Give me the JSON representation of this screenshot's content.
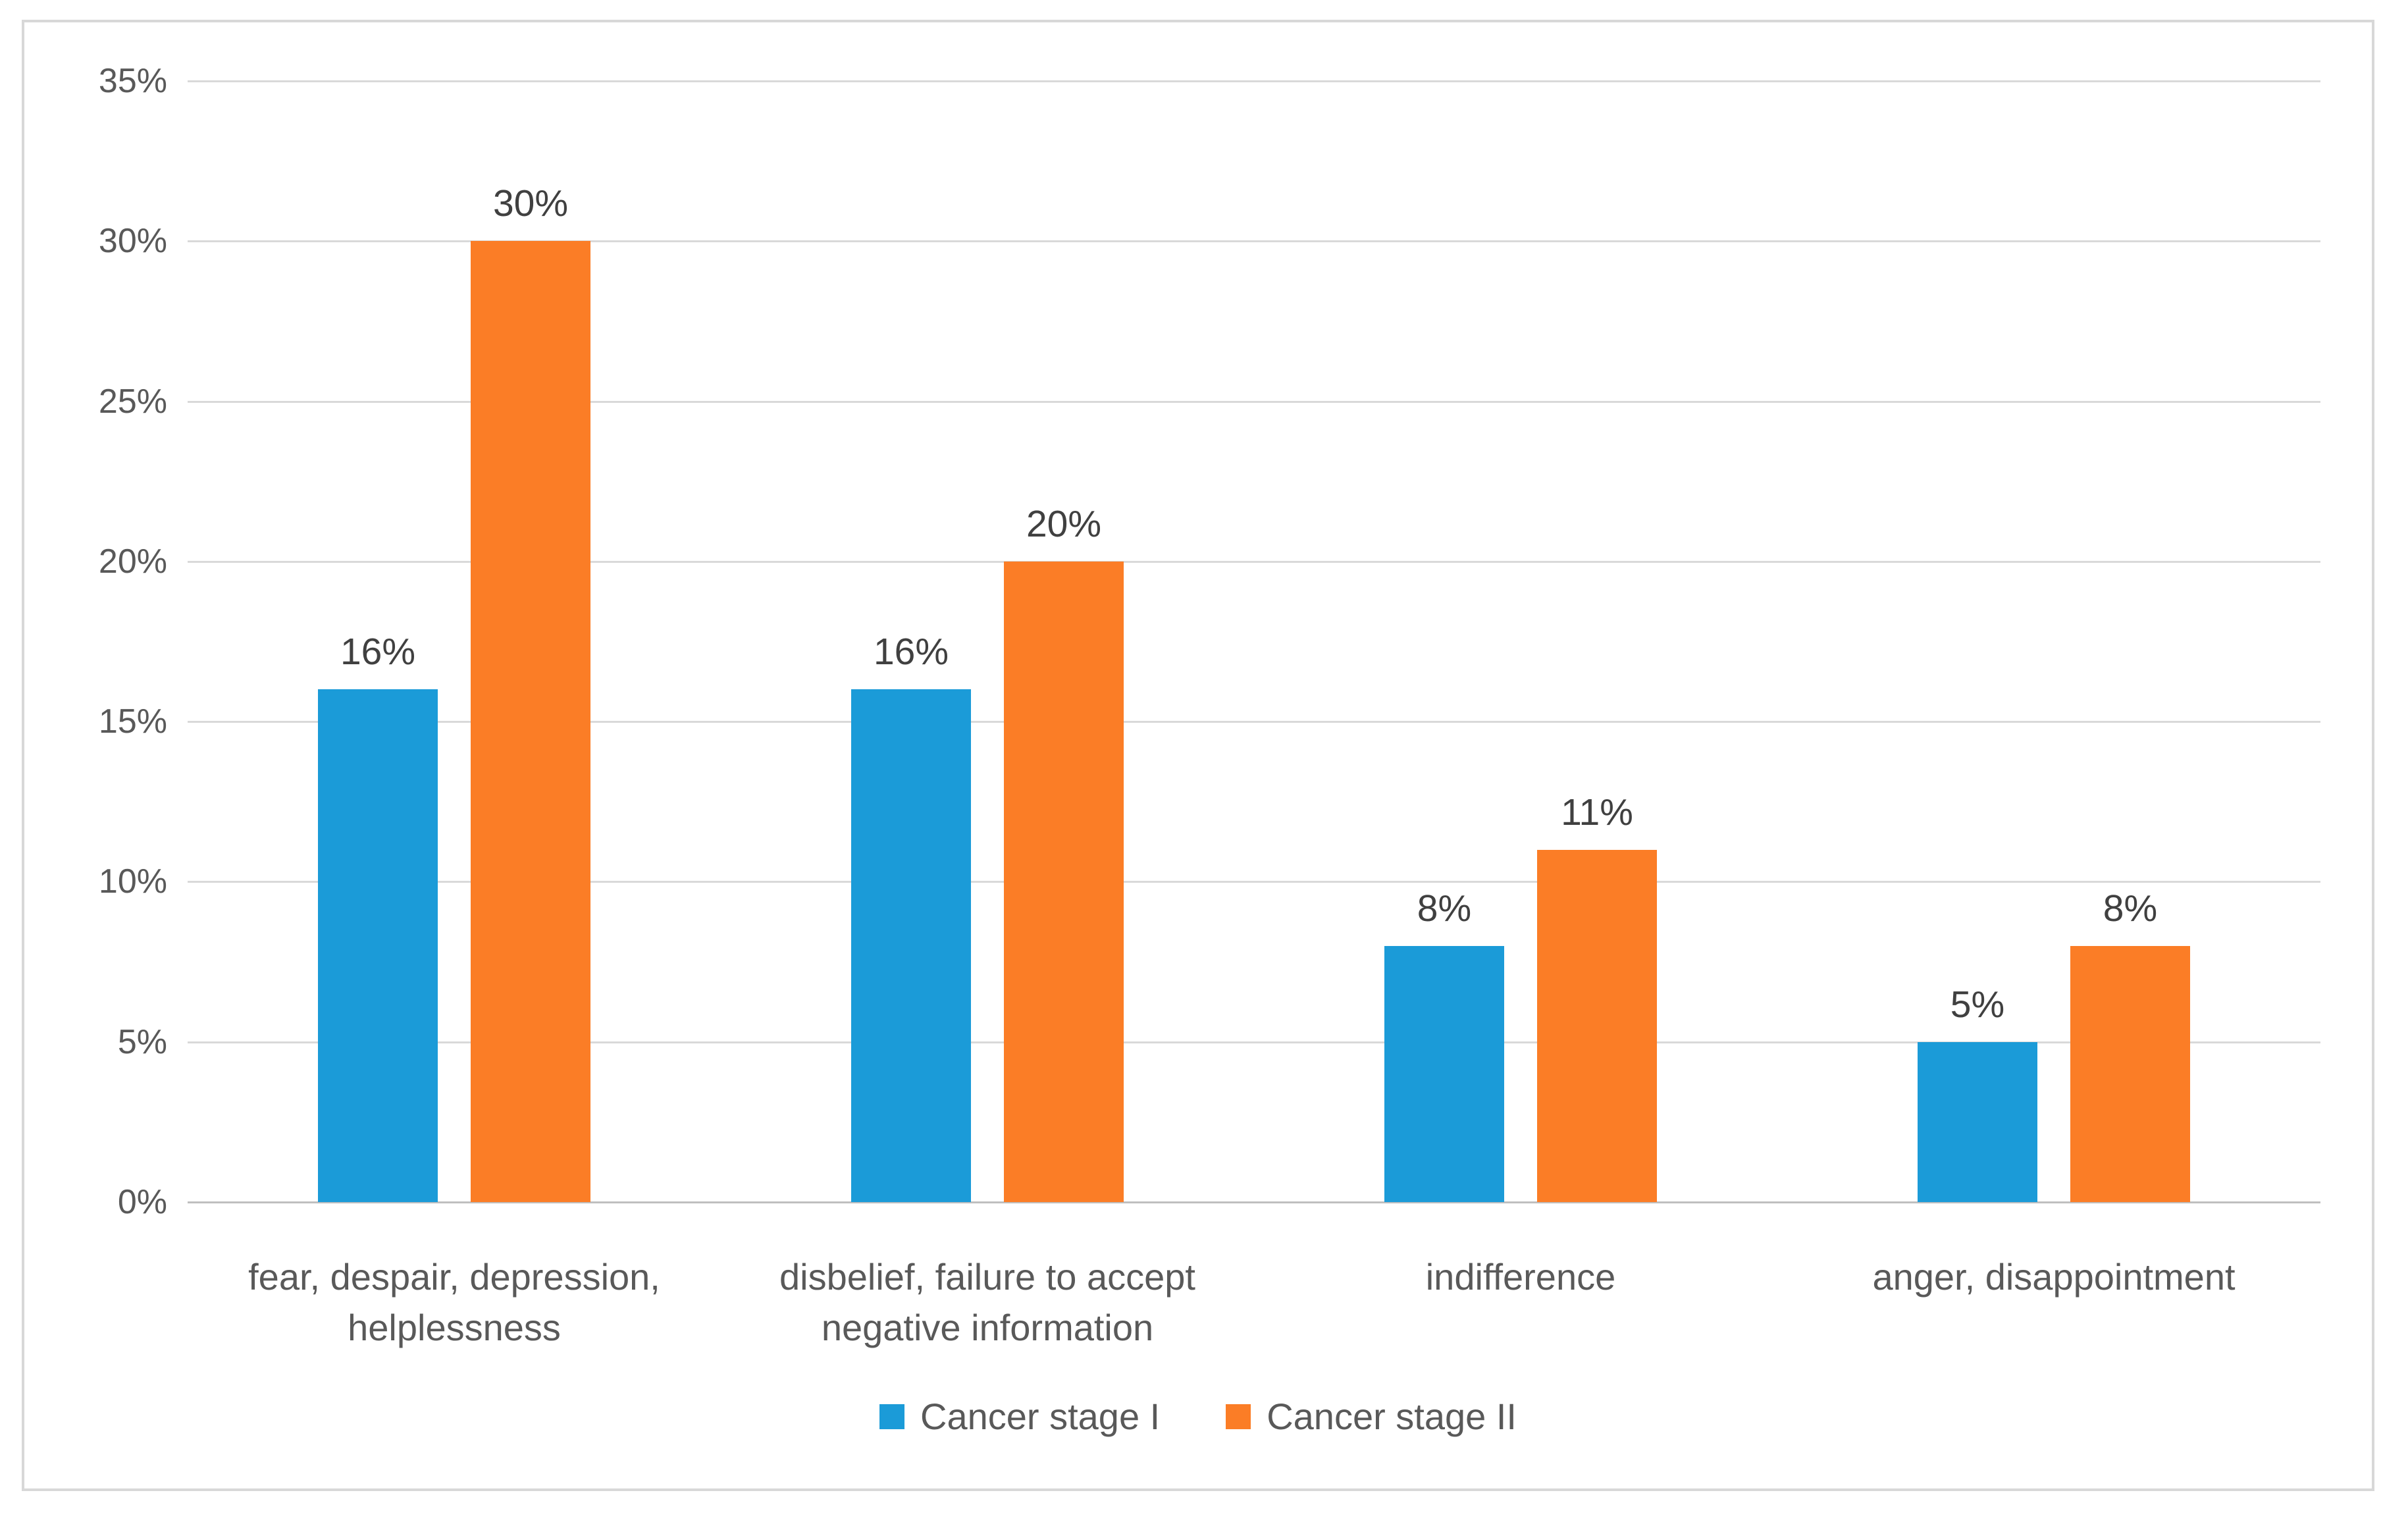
{
  "chart_data": {
    "type": "bar",
    "title": "",
    "xlabel": "",
    "ylabel": "",
    "categories": [
      "fear, despair, depression,\nhelplessness",
      "disbelief, failure to accept\nnegative information",
      "indifference",
      "anger, disappointment"
    ],
    "series": [
      {
        "name": "Cancer stage I",
        "color": "#1B9BD8",
        "values": [
          16,
          16,
          8,
          5
        ],
        "data_labels": [
          "16%",
          "16%",
          "8%",
          "5%"
        ]
      },
      {
        "name": "Cancer stage II",
        "color": "#FB7D26",
        "values": [
          30,
          20,
          11,
          8
        ],
        "data_labels": [
          "30%",
          "20%",
          "11%",
          "8%"
        ]
      }
    ],
    "y_axis": {
      "min": 0,
      "max": 35,
      "step": 5,
      "tick_labels": [
        "0%",
        "5%",
        "10%",
        "15%",
        "20%",
        "25%",
        "30%",
        "35%"
      ]
    },
    "grid": true,
    "legend_position": "bottom",
    "colors": {
      "gridline": "#D9D9D9",
      "axis_baseline": "#BFBFBF",
      "tick_text": "#595959",
      "category_text": "#595959",
      "data_label_text": "#404040",
      "frame_border": "#D8D8D8",
      "background": "#FFFFFF"
    }
  },
  "legend": {
    "items": [
      {
        "label": "Cancer stage I",
        "color": "#1B9BD8"
      },
      {
        "label": "Cancer stage II",
        "color": "#FB7D26"
      }
    ]
  }
}
